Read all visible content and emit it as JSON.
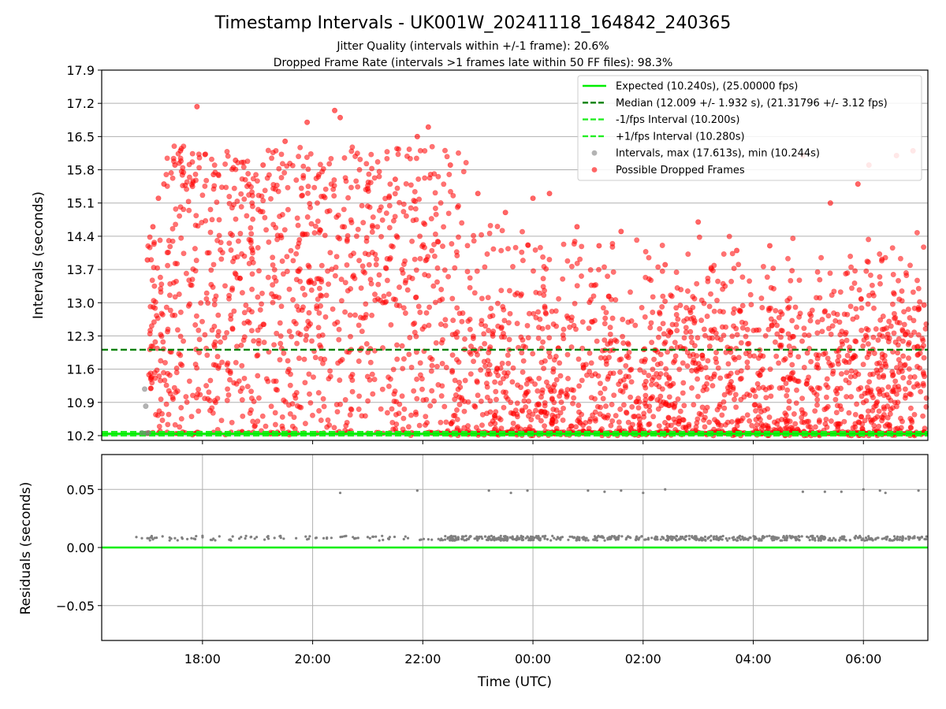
{
  "figure": {
    "title": "Timestamp Intervals - UK001W_20241118_164842_240365",
    "subtitle_1": "Jitter Quality (intervals within +/-1 frame): 20.6%",
    "subtitle_2": "Dropped Frame Rate (intervals >1 frames late within 50 FF files): 98.3%"
  },
  "chart_data": [
    {
      "type": "scatter",
      "ylabel": "Intervals (seconds)",
      "ylim": [
        10.1,
        17.9
      ],
      "yticks": [
        10.2,
        10.9,
        11.6,
        12.3,
        13.0,
        13.7,
        14.4,
        15.1,
        15.8,
        16.5,
        17.2,
        17.9
      ],
      "ytick_labels": [
        "10.2",
        "10.9",
        "11.6",
        "12.3",
        "13.0",
        "13.7",
        "14.4",
        "15.1",
        "15.8",
        "16.5",
        "17.2",
        "17.9"
      ],
      "x_axis_unit": "hours UTC (continuing past midnight, 24 = 00:00)",
      "xlim": [
        16.17,
        31.17
      ],
      "grid": "horizontal",
      "legend_position": "top-right",
      "series": [
        {
          "name": "Expected (10.240s), (25.00000 fps)",
          "kind": "hline",
          "y": 10.24,
          "color": "#00ee00",
          "style": "solid"
        },
        {
          "name": "Median (12.009 +/- 1.932 s), (21.31796 +/- 3.12 fps)",
          "kind": "hline",
          "y": 12.009,
          "color": "#008000",
          "style": "dashed"
        },
        {
          "name": "-1/fps Interval (10.200s)",
          "kind": "hline",
          "y": 10.2,
          "color": "#22ee22",
          "style": "dashed"
        },
        {
          "name": "+1/fps Interval (10.280s)",
          "kind": "hline",
          "y": 10.28,
          "color": "#22ee22",
          "style": "dashed"
        },
        {
          "name": "Intervals, max (17.613s), min (10.244s)",
          "kind": "scatter",
          "color": "#808080",
          "points": [
            [
              16.95,
              11.18
            ],
            [
              16.97,
              10.82
            ],
            [
              16.9,
              10.26
            ],
            [
              16.98,
              10.25
            ],
            [
              17.02,
              10.26
            ]
          ]
        },
        {
          "name": "Possible Dropped Frames",
          "kind": "scatter",
          "color": "#ff0000",
          "density": "dense band 10.2-16.5 from 17:00 to 01:00, then concentrated 10.2-13.5 from 01:00 to 07:10",
          "points": [
            [
              17.0,
              13.9
            ],
            [
              17.1,
              14.6
            ],
            [
              17.2,
              15.2
            ],
            [
              17.3,
              15.5
            ],
            [
              17.5,
              15.9
            ],
            [
              17.6,
              16.2
            ],
            [
              17.9,
              17.13
            ],
            [
              18.2,
              15.7
            ],
            [
              18.6,
              16.0
            ],
            [
              19.1,
              15.9
            ],
            [
              19.5,
              16.4
            ],
            [
              19.9,
              16.8
            ],
            [
              20.4,
              17.05
            ],
            [
              20.5,
              16.9
            ],
            [
              21.0,
              15.4
            ],
            [
              21.5,
              15.6
            ],
            [
              21.9,
              16.5
            ],
            [
              22.1,
              16.7
            ],
            [
              22.5,
              15.9
            ],
            [
              23.0,
              15.3
            ],
            [
              23.5,
              14.9
            ],
            [
              24.0,
              15.2
            ],
            [
              24.3,
              15.3
            ],
            [
              24.8,
              14.6
            ],
            [
              25.2,
              14.2
            ],
            [
              25.6,
              14.5
            ],
            [
              26.4,
              13.8
            ],
            [
              27.0,
              14.7
            ],
            [
              27.7,
              14.1
            ],
            [
              28.3,
              14.2
            ],
            [
              28.9,
              16.1
            ],
            [
              29.4,
              15.1
            ],
            [
              29.9,
              15.5
            ],
            [
              30.1,
              15.9
            ],
            [
              30.6,
              16.1
            ],
            [
              30.9,
              16.2
            ],
            [
              31.1,
              12.95
            ]
          ]
        }
      ]
    },
    {
      "type": "scatter",
      "ylabel": "Residuals (seconds)",
      "xlabel": "Time (UTC)",
      "ylim": [
        -0.08,
        0.08
      ],
      "yticks": [
        -0.05,
        0.0,
        0.05
      ],
      "ytick_labels": [
        "−0.05",
        "0.00",
        "0.05"
      ],
      "xlim": [
        16.17,
        31.17
      ],
      "xticks": [
        18,
        20,
        22,
        24,
        26,
        28,
        30
      ],
      "xtick_labels": [
        "18:00",
        "20:00",
        "22:00",
        "00:00",
        "02:00",
        "04:00",
        "06:00"
      ],
      "grid": "both",
      "series": [
        {
          "kind": "hline",
          "y": 0.0,
          "color": "#00ee00",
          "style": "solid"
        },
        {
          "kind": "scatter",
          "color": "#808080",
          "points": [
            [
              16.8,
              0.009
            ],
            [
              16.9,
              0.008
            ],
            [
              17.0,
              0.008
            ],
            [
              17.1,
              0.007
            ],
            [
              17.5,
              0.008
            ],
            [
              17.8,
              0.008
            ],
            [
              18.0,
              0.01
            ],
            [
              18.7,
              0.009
            ],
            [
              19.7,
              0.008
            ],
            [
              19.9,
              0.007
            ],
            [
              20.2,
              0.008
            ],
            [
              20.5,
              0.047
            ],
            [
              21.0,
              0.009
            ],
            [
              21.4,
              0.009
            ],
            [
              21.9,
              0.049
            ],
            [
              22.5,
              0.008
            ],
            [
              23.2,
              0.049
            ],
            [
              23.6,
              0.047
            ],
            [
              23.9,
              0.049
            ],
            [
              24.5,
              0.008
            ],
            [
              25.0,
              0.049
            ],
            [
              25.3,
              0.048
            ],
            [
              25.6,
              0.049
            ],
            [
              26.0,
              0.047
            ],
            [
              26.4,
              0.05
            ],
            [
              28.9,
              0.048
            ],
            [
              29.3,
              0.048
            ],
            [
              29.6,
              0.048
            ],
            [
              30.0,
              0.05
            ],
            [
              30.3,
              0.049
            ],
            [
              30.4,
              0.047
            ],
            [
              31.0,
              0.049
            ]
          ]
        }
      ]
    }
  ]
}
